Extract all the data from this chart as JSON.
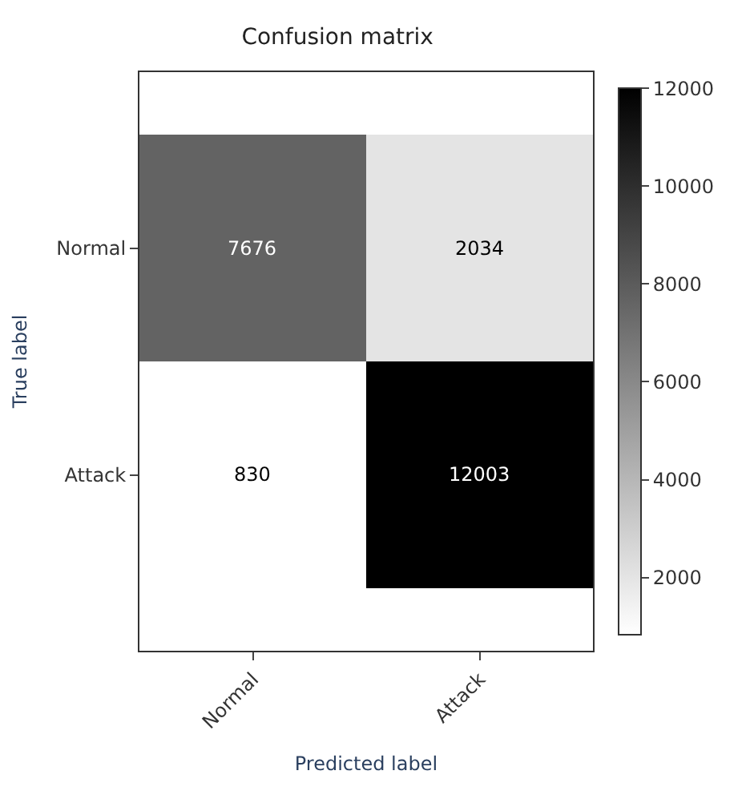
{
  "chart_data": {
    "type": "heatmap",
    "title": "Confusion matrix",
    "xlabel": "Predicted label",
    "ylabel": "True label",
    "categories": [
      "Normal",
      "Attack"
    ],
    "y_categories": [
      "Normal",
      "Attack"
    ],
    "cells": [
      [
        7676,
        2034
      ],
      [
        830,
        12003
      ]
    ],
    "data_labels": true,
    "clim": [
      830,
      12003
    ],
    "cticks": [
      2000,
      4000,
      6000,
      8000,
      10000,
      12000
    ]
  }
}
